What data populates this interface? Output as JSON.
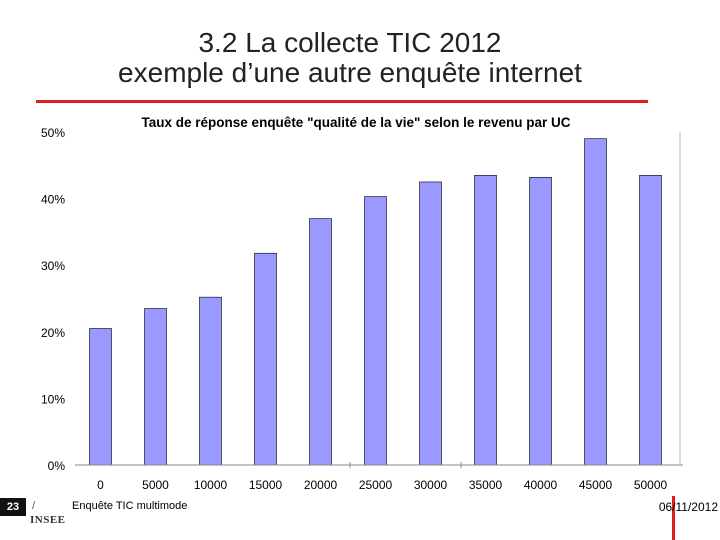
{
  "slide": {
    "title_line1": "3.2 La collecte TIC 2012",
    "title_line2": "exemple d’une autre enquête internet",
    "page_number": "23",
    "page_slash": "/",
    "logo_text": "INSEE",
    "footer_source": "Enquête TIC multimode",
    "footer_date": "06/11/2012"
  },
  "colors": {
    "accent_red": "#e02020",
    "bar_fill": "#9999ff",
    "bar_stroke": "#000000"
  },
  "chart_data": {
    "type": "bar",
    "title": "Taux de réponse enquête \"qualité de la vie\" selon le revenu par UC",
    "xlabel": "",
    "ylabel": "",
    "categories": [
      "0",
      "5000",
      "10000",
      "15000",
      "20000",
      "25000",
      "30000",
      "35000",
      "40000",
      "45000",
      "50000"
    ],
    "values": [
      20.5,
      23.5,
      25.2,
      31.8,
      37.0,
      40.3,
      42.5,
      43.5,
      43.2,
      49.0,
      43.5
    ],
    "value_unit": "%",
    "ylim": [
      0,
      50
    ],
    "y_ticks": [
      "0%",
      "10%",
      "20%",
      "30%",
      "40%",
      "50%"
    ],
    "grid": false,
    "legend": "none"
  }
}
